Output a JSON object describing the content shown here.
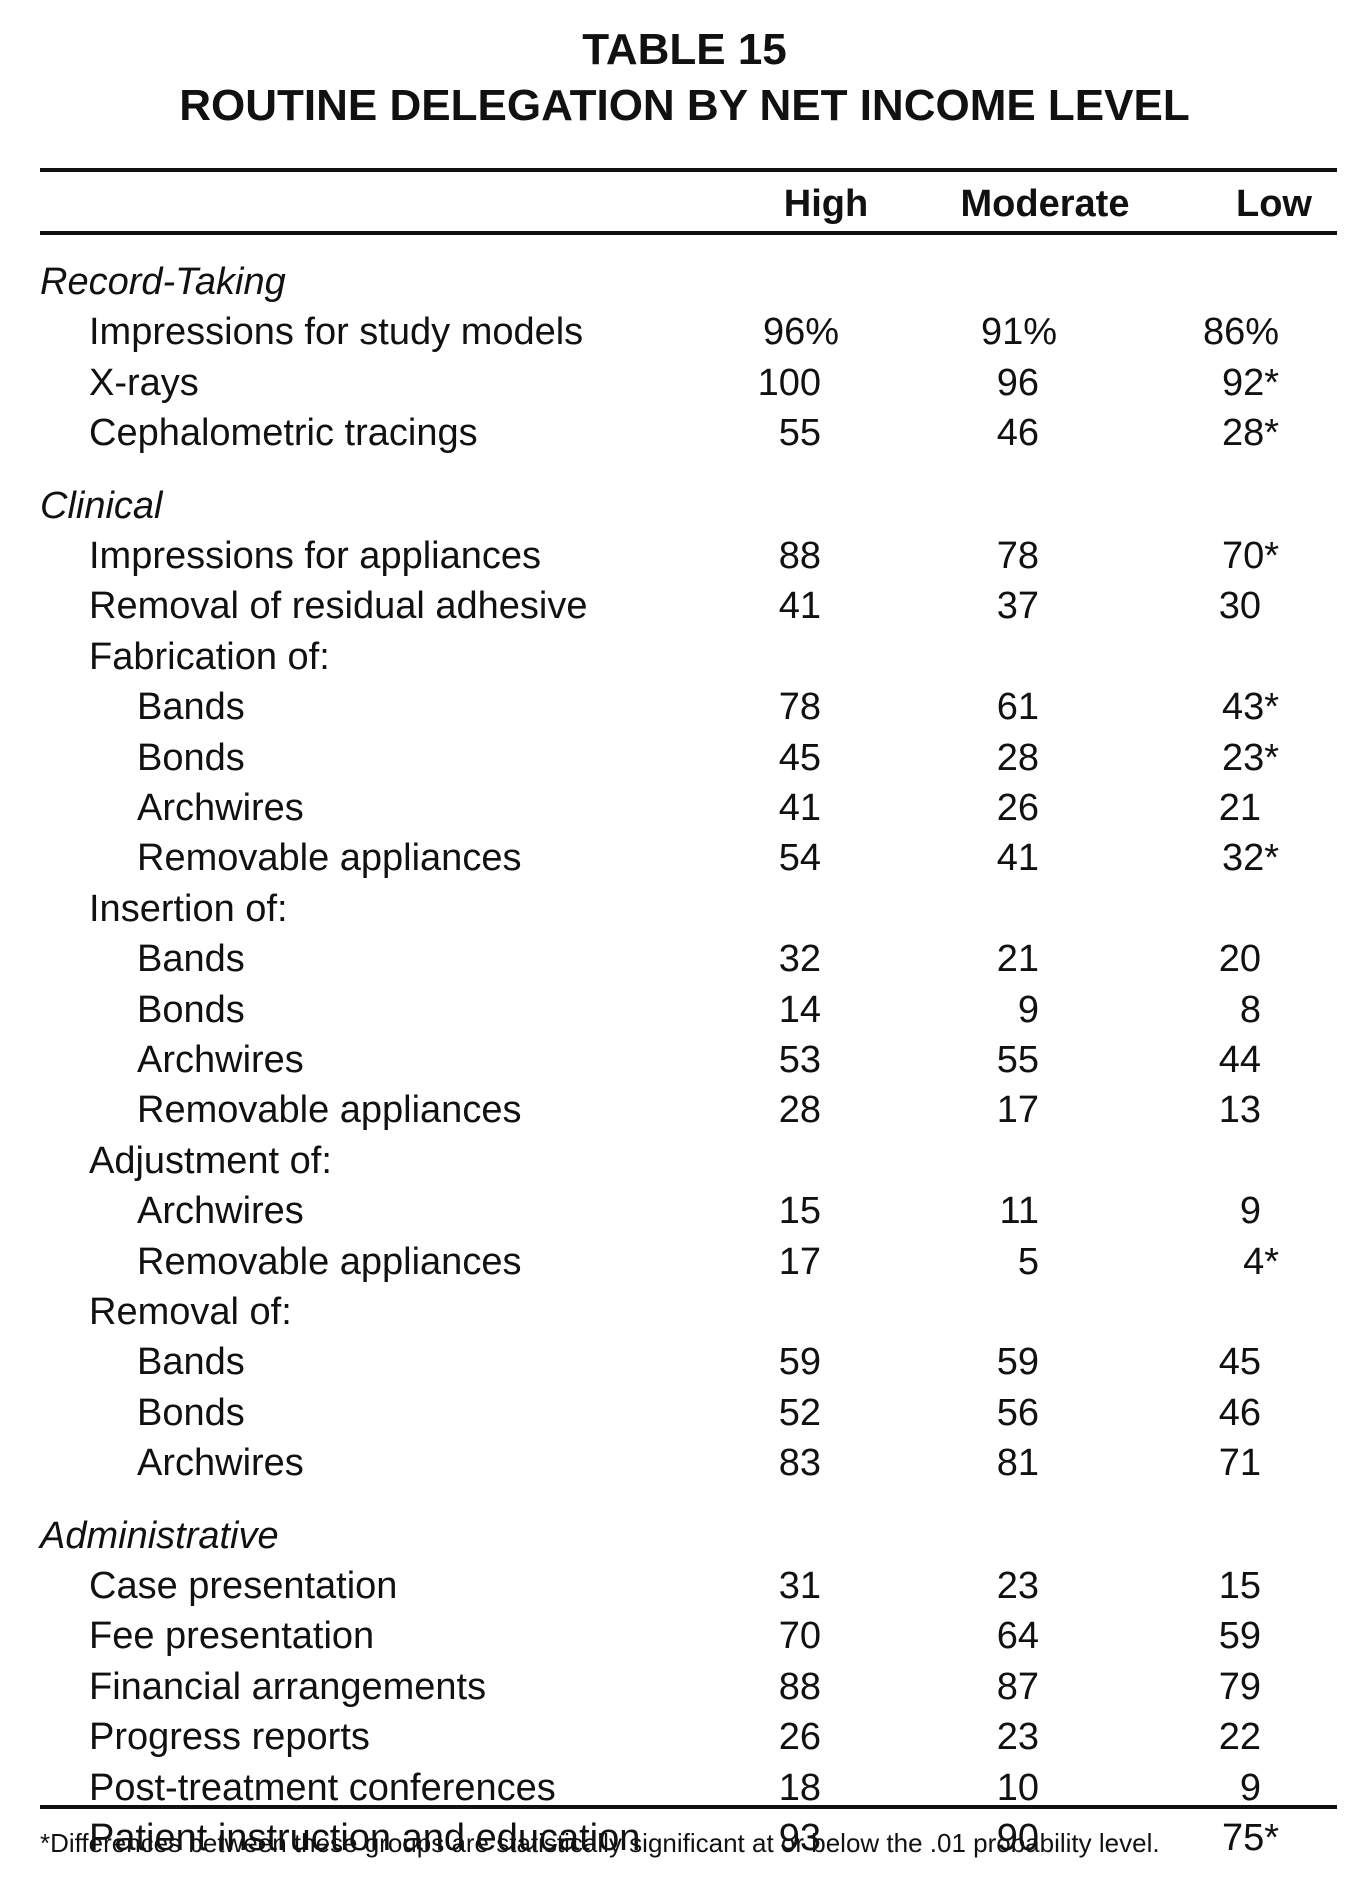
{
  "title": "TABLE 15",
  "subtitle": "ROUTINE DELEGATION BY NET INCOME LEVEL",
  "columns": [
    "High",
    "Moderate",
    "Low"
  ],
  "rows": [
    {
      "label": "Record-Taking",
      "level": 0,
      "section": true
    },
    {
      "label": "Impressions for study models",
      "level": 1,
      "values": [
        "96%",
        "91%",
        "86%"
      ]
    },
    {
      "label": "X-rays",
      "level": 1,
      "values": [
        "100",
        "96",
        "92*"
      ]
    },
    {
      "label": "Cephalometric tracings",
      "level": 1,
      "values": [
        "55",
        "46",
        "28*"
      ]
    },
    {
      "label": "Clinical",
      "level": 0,
      "section": true
    },
    {
      "label": "Impressions for appliances",
      "level": 1,
      "values": [
        "88",
        "78",
        "70*"
      ]
    },
    {
      "label": "Removal of residual adhesive",
      "level": 1,
      "values": [
        "41",
        "37",
        "30"
      ]
    },
    {
      "label": "Fabrication of:",
      "level": 1
    },
    {
      "label": "Bands",
      "level": 2,
      "values": [
        "78",
        "61",
        "43*"
      ]
    },
    {
      "label": "Bonds",
      "level": 2,
      "values": [
        "45",
        "28",
        "23*"
      ]
    },
    {
      "label": "Archwires",
      "level": 2,
      "values": [
        "41",
        "26",
        "21"
      ]
    },
    {
      "label": "Removable appliances",
      "level": 2,
      "values": [
        "54",
        "41",
        "32*"
      ]
    },
    {
      "label": "Insertion of:",
      "level": 1
    },
    {
      "label": "Bands",
      "level": 2,
      "values": [
        "32",
        "21",
        "20"
      ]
    },
    {
      "label": "Bonds",
      "level": 2,
      "values": [
        "14",
        "9",
        "8"
      ]
    },
    {
      "label": "Archwires",
      "level": 2,
      "values": [
        "53",
        "55",
        "44"
      ]
    },
    {
      "label": "Removable appliances",
      "level": 2,
      "values": [
        "28",
        "17",
        "13"
      ]
    },
    {
      "label": "Adjustment of:",
      "level": 1
    },
    {
      "label": "Archwires",
      "level": 2,
      "values": [
        "15",
        "11",
        "9"
      ]
    },
    {
      "label": "Removable appliances",
      "level": 2,
      "values": [
        "17",
        "5",
        "4*"
      ]
    },
    {
      "label": "Removal of:",
      "level": 1
    },
    {
      "label": "Bands",
      "level": 2,
      "values": [
        "59",
        "59",
        "45"
      ]
    },
    {
      "label": "Bonds",
      "level": 2,
      "values": [
        "52",
        "56",
        "46"
      ]
    },
    {
      "label": "Archwires",
      "level": 2,
      "values": [
        "83",
        "81",
        "71"
      ]
    },
    {
      "label": "Administrative",
      "level": 0,
      "section": true
    },
    {
      "label": "Case presentation",
      "level": 1,
      "values": [
        "31",
        "23",
        "15"
      ]
    },
    {
      "label": "Fee presentation",
      "level": 1,
      "values": [
        "70",
        "64",
        "59"
      ]
    },
    {
      "label": "Financial arrangements",
      "level": 1,
      "values": [
        "88",
        "87",
        "79"
      ]
    },
    {
      "label": "Progress reports",
      "level": 1,
      "values": [
        "26",
        "23",
        "22"
      ]
    },
    {
      "label": "Post-treatment conferences",
      "level": 1,
      "values": [
        "18",
        "10",
        "9"
      ]
    },
    {
      "label": "Patient instruction and education",
      "level": 1,
      "values": [
        "93",
        "90",
        "75*"
      ]
    }
  ],
  "footnote": "*Differences between these groups are statistically significant at or below the .01 probability level."
}
